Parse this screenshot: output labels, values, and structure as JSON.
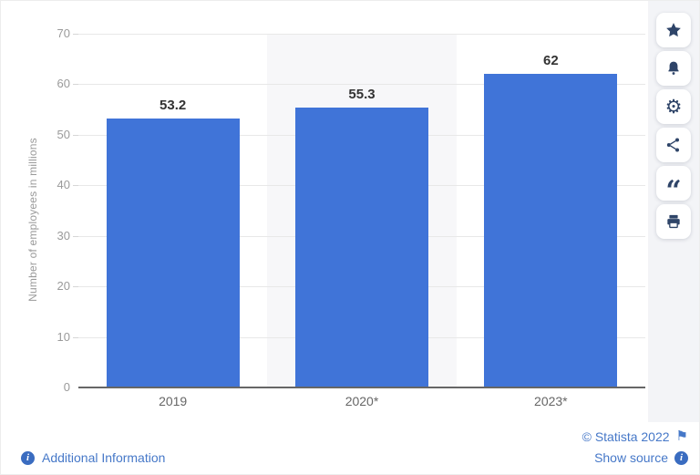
{
  "chart_data": {
    "type": "bar",
    "title": "",
    "categories": [
      "2019",
      "2020*",
      "2023*"
    ],
    "values": [
      53.2,
      55.3,
      62
    ],
    "value_labels": [
      "53.2",
      "55.3",
      "62"
    ],
    "xlabel": "",
    "ylabel": "Number of employees in millions",
    "ylim": [
      0,
      70
    ],
    "yticks": [
      0,
      10,
      20,
      30,
      40,
      50,
      60,
      70
    ],
    "grid": true,
    "legend": "none",
    "bar_color": "#4074d8",
    "highlighted_category_index": 1,
    "highlight_color": "#f7f7f9"
  },
  "toolbar": {
    "buttons": [
      {
        "name": "favorite",
        "icon": "star-icon"
      },
      {
        "name": "alerts",
        "icon": "bell-icon"
      },
      {
        "name": "settings",
        "icon": "gear-icon"
      },
      {
        "name": "share",
        "icon": "share-icon"
      },
      {
        "name": "cite",
        "icon": "quote-icon"
      },
      {
        "name": "print",
        "icon": "printer-icon"
      }
    ]
  },
  "footer": {
    "additional_information": "Additional Information",
    "copyright": "© Statista 2022",
    "show_source": "Show source"
  },
  "colors": {
    "bar": "#4074d8",
    "icon": "#2e4468",
    "link": "#4678c8",
    "grid": "#e8e8e8",
    "axis_line": "#666666",
    "tick_label": "#9a9a9a",
    "x_label": "#666666",
    "value_label": "#333333",
    "rail_background": "#f3f4f7",
    "highlight_band": "#f7f7f9"
  }
}
